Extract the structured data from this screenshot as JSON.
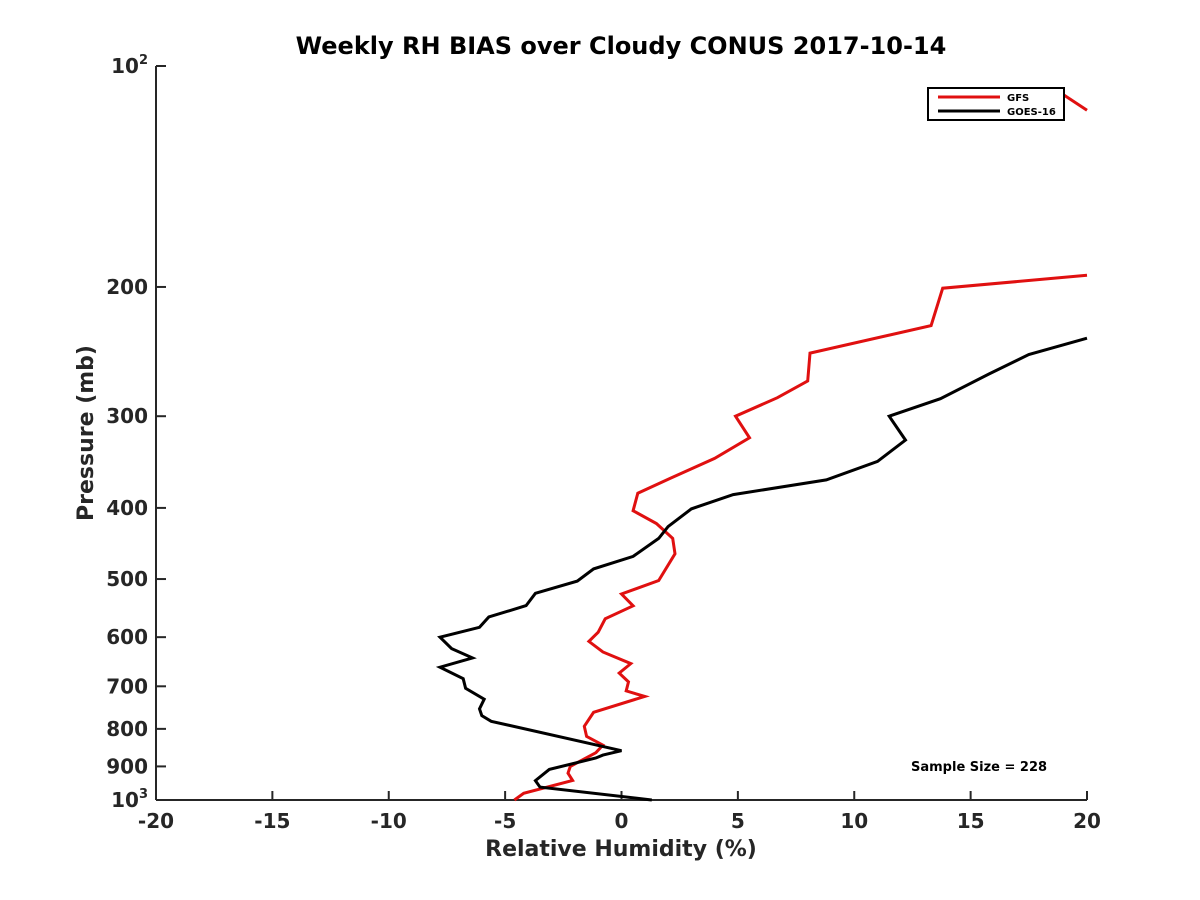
{
  "chart_data": {
    "type": "line",
    "title": "Weekly RH BIAS over Cloudy CONUS 2017-10-14",
    "xlabel": "Relative Humidity (%)",
    "ylabel": "Pressure (mb)",
    "xlim": [
      -20,
      20
    ],
    "ylim": [
      1000,
      100
    ],
    "yscale": "log",
    "y_reversed": true,
    "grid": false,
    "legend_position": "top-right",
    "x_ticks": [
      "-20",
      "-15",
      "-10",
      "-5",
      "0",
      "5",
      "10",
      "15",
      "20"
    ],
    "y_ticks": [
      {
        "value": 100,
        "base": "10",
        "exp": "2"
      },
      {
        "value": 200,
        "label": "200"
      },
      {
        "value": 300,
        "label": "300"
      },
      {
        "value": 400,
        "label": "400"
      },
      {
        "value": 500,
        "label": "500"
      },
      {
        "value": 600,
        "label": "600"
      },
      {
        "value": 700,
        "label": "700"
      },
      {
        "value": 800,
        "label": "800"
      },
      {
        "value": 900,
        "label": "900"
      },
      {
        "value": 1000,
        "base": "10",
        "exp": "3"
      }
    ],
    "series": [
      {
        "name": "GFS",
        "color": "#e01010",
        "points": [
          {
            "x": 18.6,
            "p": 107.4
          },
          {
            "x": 20.0,
            "p": 114.9
          },
          {
            "x": null,
            "p": null
          },
          {
            "x": 20.0,
            "p": 192.8
          },
          {
            "x": 13.8,
            "p": 200.8
          },
          {
            "x": 13.3,
            "p": 225.8
          },
          {
            "x": 8.1,
            "p": 246.1
          },
          {
            "x": 8.0,
            "p": 268.6
          },
          {
            "x": 6.7,
            "p": 283.1
          },
          {
            "x": 4.9,
            "p": 300.0
          },
          {
            "x": 5.5,
            "p": 321.0
          },
          {
            "x": 4.0,
            "p": 342.5
          },
          {
            "x": 2.1,
            "p": 364.4
          },
          {
            "x": 0.7,
            "p": 382.0
          },
          {
            "x": 0.5,
            "p": 403.5
          },
          {
            "x": 1.5,
            "p": 420.1
          },
          {
            "x": 2.2,
            "p": 440.2
          },
          {
            "x": 2.3,
            "p": 462.0
          },
          {
            "x": 1.6,
            "p": 502.3
          },
          {
            "x": 0.0,
            "p": 524.0
          },
          {
            "x": 0.5,
            "p": 543.8
          },
          {
            "x": -0.7,
            "p": 566.4
          },
          {
            "x": -1.0,
            "p": 590.7
          },
          {
            "x": -1.4,
            "p": 608.0
          },
          {
            "x": -0.8,
            "p": 628.6
          },
          {
            "x": 0.4,
            "p": 651.9
          },
          {
            "x": -0.1,
            "p": 671.7
          },
          {
            "x": 0.3,
            "p": 690.3
          },
          {
            "x": 0.2,
            "p": 710.1
          },
          {
            "x": 1.0,
            "p": 722.6
          },
          {
            "x": -1.2,
            "p": 759.4
          },
          {
            "x": -1.6,
            "p": 793.5
          },
          {
            "x": -1.5,
            "p": 819.2
          },
          {
            "x": -0.8,
            "p": 841.9
          },
          {
            "x": -1.1,
            "p": 862.2
          },
          {
            "x": -2.2,
            "p": 900.0
          },
          {
            "x": -2.3,
            "p": 919.3
          },
          {
            "x": -2.1,
            "p": 940.3
          },
          {
            "x": -4.2,
            "p": 979.1
          },
          {
            "x": -4.6,
            "p": 1000.0
          }
        ]
      },
      {
        "name": "GOES-16",
        "color": "#000000",
        "points": [
          {
            "x": 20.0,
            "p": 234.9
          },
          {
            "x": 17.5,
            "p": 247.2
          },
          {
            "x": 15.8,
            "p": 262.7
          },
          {
            "x": 13.7,
            "p": 284.0
          },
          {
            "x": 11.5,
            "p": 300.0
          },
          {
            "x": 12.2,
            "p": 323.4
          },
          {
            "x": 11.0,
            "p": 345.7
          },
          {
            "x": 8.8,
            "p": 366.4
          },
          {
            "x": 4.8,
            "p": 383.7
          },
          {
            "x": 3.0,
            "p": 401.3
          },
          {
            "x": 2.0,
            "p": 424.1
          },
          {
            "x": 1.6,
            "p": 440.2
          },
          {
            "x": 0.5,
            "p": 465.7
          },
          {
            "x": -1.2,
            "p": 484.4
          },
          {
            "x": -1.9,
            "p": 503.2
          },
          {
            "x": -3.7,
            "p": 522.9
          },
          {
            "x": -4.1,
            "p": 543.4
          },
          {
            "x": -5.7,
            "p": 563.3
          },
          {
            "x": -6.1,
            "p": 581.7
          },
          {
            "x": -7.8,
            "p": 600.0
          },
          {
            "x": -7.3,
            "p": 621.9
          },
          {
            "x": -6.4,
            "p": 640.3
          },
          {
            "x": -7.8,
            "p": 659.3
          },
          {
            "x": -6.8,
            "p": 683.4
          },
          {
            "x": -6.7,
            "p": 704.5
          },
          {
            "x": -5.9,
            "p": 728.9
          },
          {
            "x": -6.1,
            "p": 751.5
          },
          {
            "x": -6.0,
            "p": 767.3
          },
          {
            "x": -5.6,
            "p": 781.2
          },
          {
            "x": 0.0,
            "p": 856.6
          },
          {
            "x": -0.8,
            "p": 868.7
          },
          {
            "x": -1.1,
            "p": 876.6
          },
          {
            "x": -3.1,
            "p": 908.4
          },
          {
            "x": -3.7,
            "p": 940.9
          },
          {
            "x": -3.5,
            "p": 960.4
          },
          {
            "x": 1.3,
            "p": 1000.0
          }
        ]
      }
    ],
    "annotations": [
      "Sample Size = 228"
    ]
  }
}
